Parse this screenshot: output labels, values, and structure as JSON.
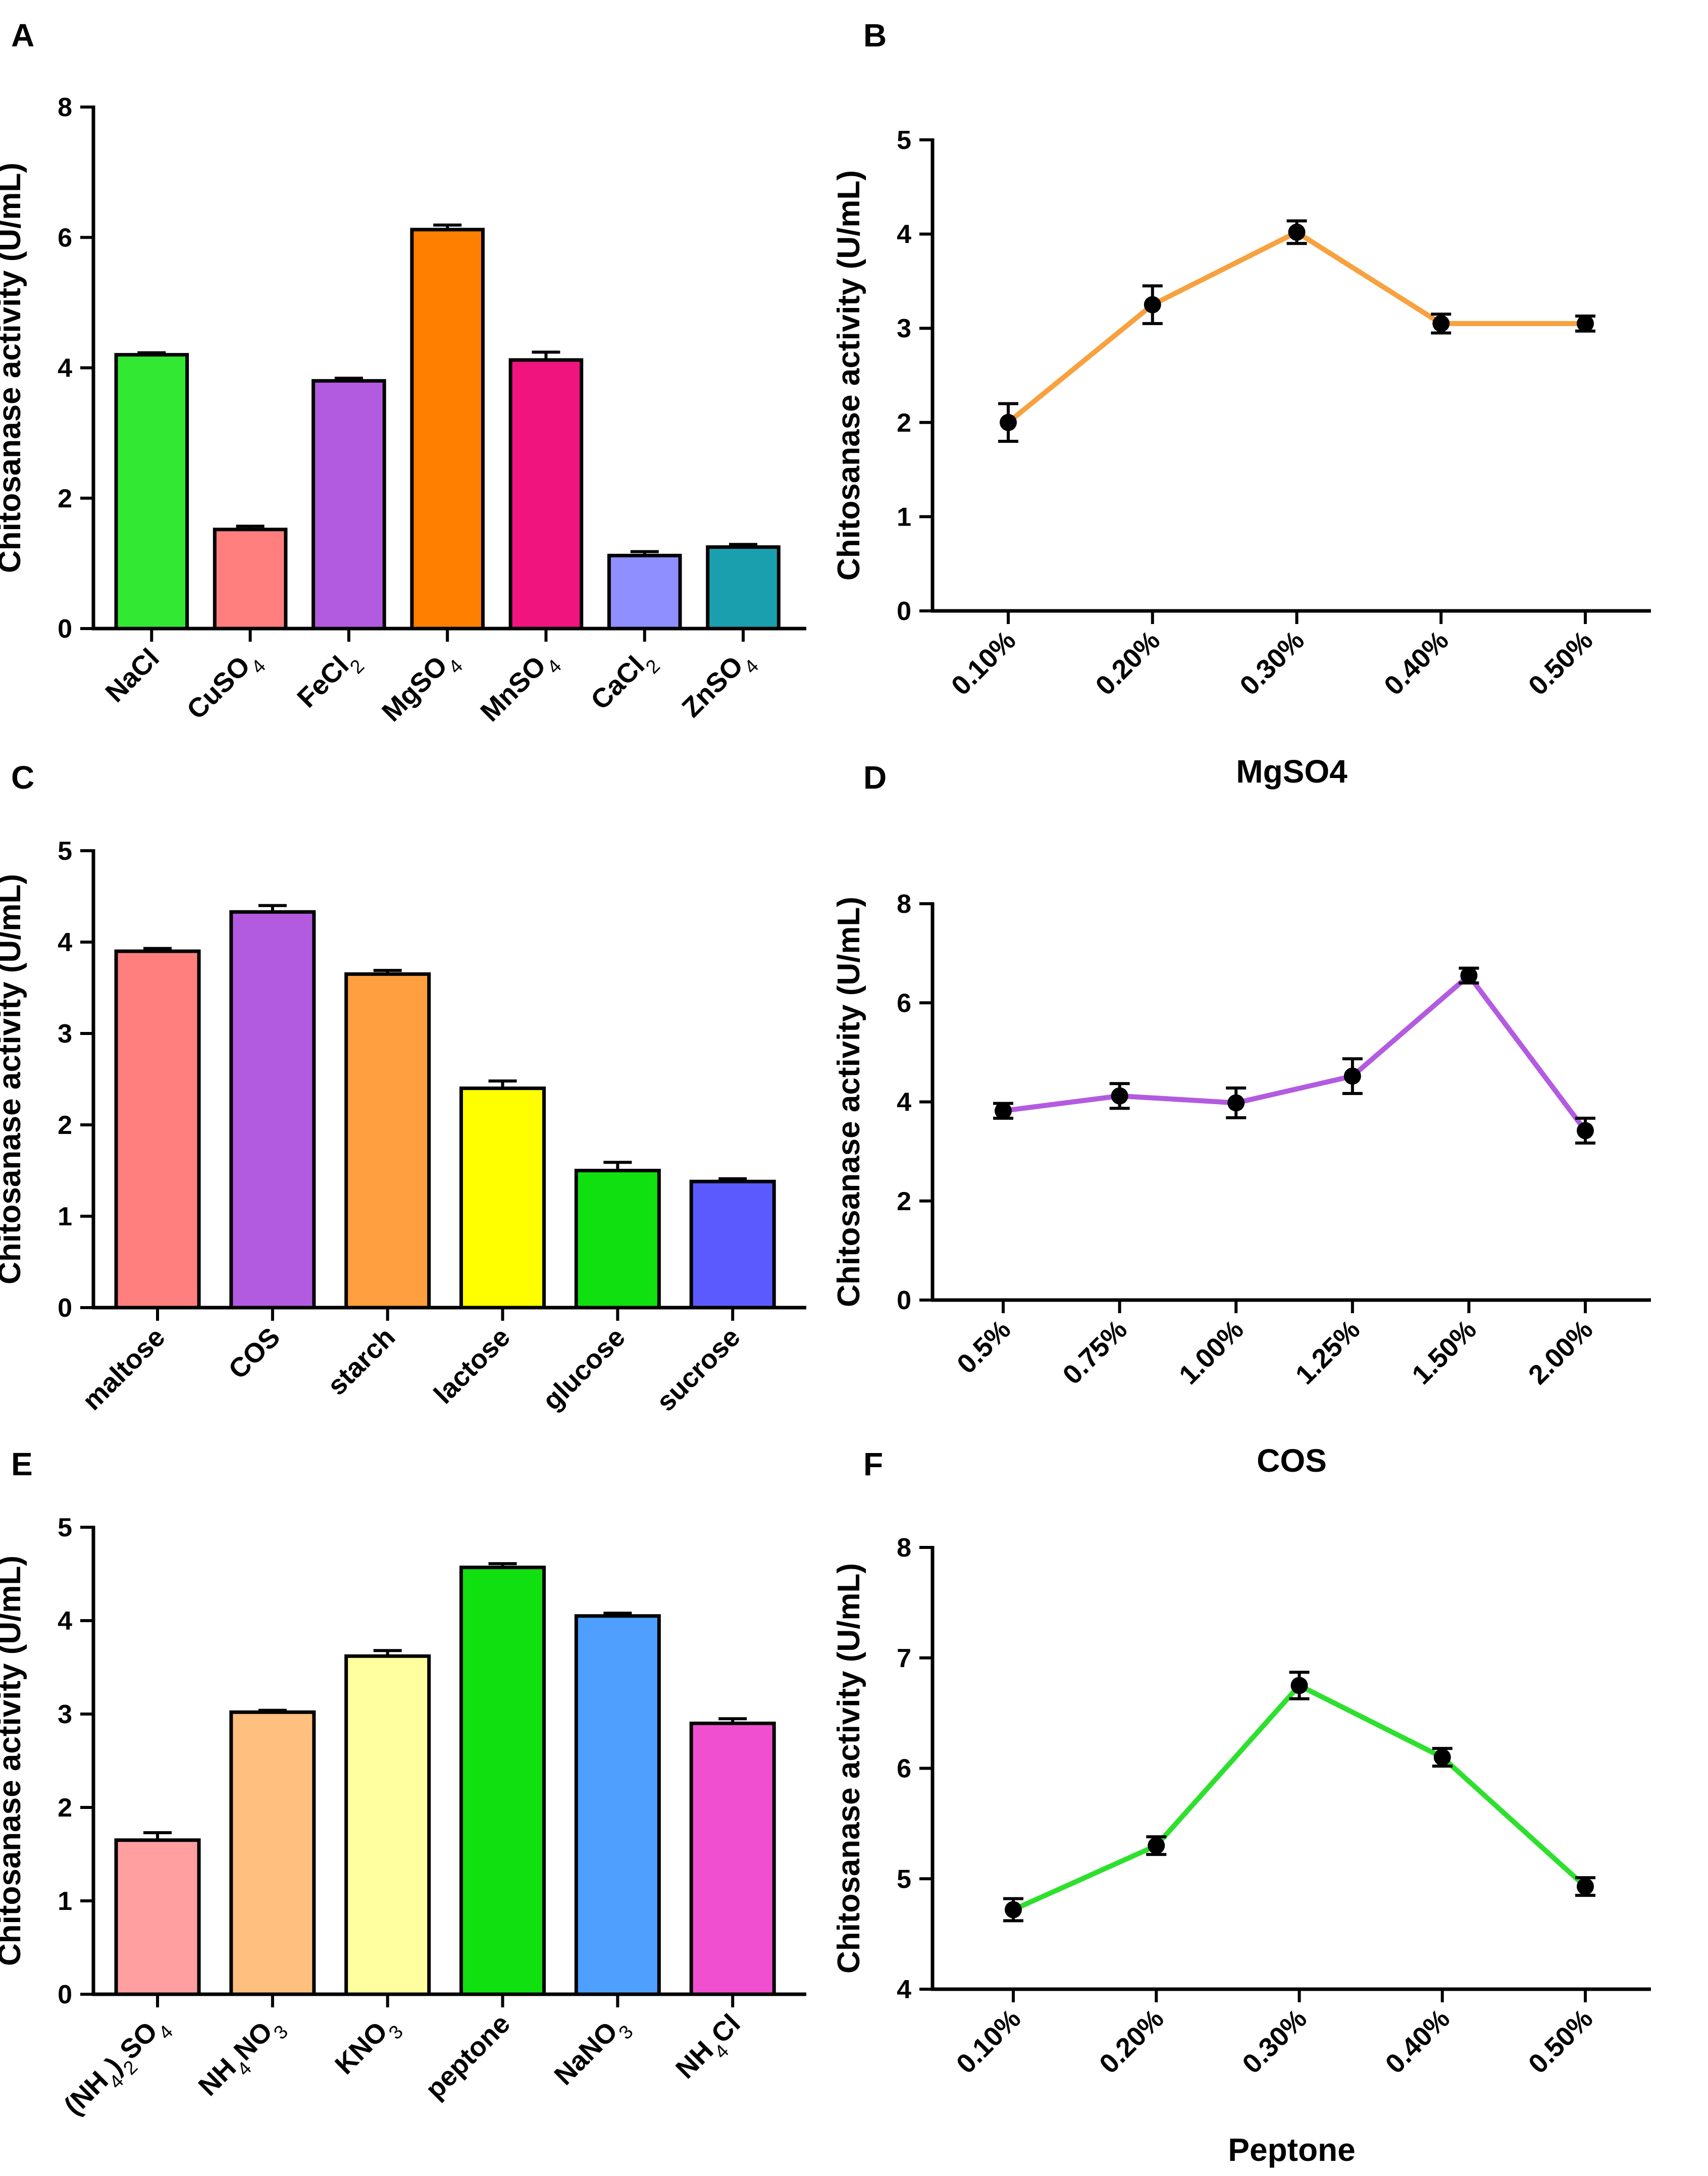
{
  "chart_data": [
    {
      "panel": "A",
      "type": "bar",
      "title": "",
      "xlabel": "",
      "ylabel": "Chitosanase activity (U/mL)",
      "ylim": [
        0,
        8
      ],
      "yticks": [
        0,
        2,
        4,
        6,
        8
      ],
      "categories": [
        "NaCl",
        "CuSO4",
        "FeCl2",
        "MgSO4",
        "MnSO4",
        "CaCl2",
        "ZnSO4"
      ],
      "category_parts": [
        [
          {
            "t": "NaCl"
          }
        ],
        [
          {
            "t": "CuSO"
          },
          {
            "t": "4",
            "sub": true
          }
        ],
        [
          {
            "t": "FeCl"
          },
          {
            "t": "2",
            "sub": true
          }
        ],
        [
          {
            "t": "MgSO"
          },
          {
            "t": "4",
            "sub": true
          }
        ],
        [
          {
            "t": "MnSO"
          },
          {
            "t": "4",
            "sub": true
          }
        ],
        [
          {
            "t": "CaCl"
          },
          {
            "t": "2",
            "sub": true
          }
        ],
        [
          {
            "t": "ZnSO"
          },
          {
            "t": "4",
            "sub": true
          }
        ]
      ],
      "values": [
        4.2,
        1.52,
        3.8,
        6.12,
        4.12,
        1.12,
        1.25
      ],
      "errors": [
        0.03,
        0.05,
        0.04,
        0.07,
        0.12,
        0.06,
        0.04
      ],
      "colors": [
        "#33e833",
        "#ff7f7f",
        "#b35be0",
        "#ff7f00",
        "#f0147f",
        "#8f8fff",
        "#1a9faf"
      ]
    },
    {
      "panel": "B",
      "type": "line",
      "title": "",
      "xlabel": "MgSO4",
      "ylabel": "Chitosanase activity (U/mL)",
      "ylim": [
        0,
        5
      ],
      "yticks": [
        0,
        1,
        2,
        3,
        4,
        5
      ],
      "categories": [
        "0.10%",
        "0.20%",
        "0.30%",
        "0.40%",
        "0.50%"
      ],
      "values": [
        2.0,
        3.25,
        4.02,
        3.05,
        3.05
      ],
      "errors": [
        0.2,
        0.2,
        0.12,
        0.1,
        0.08
      ],
      "color": "#f7a13f"
    },
    {
      "panel": "C",
      "type": "bar",
      "title": "",
      "xlabel": "",
      "ylabel": "Chitosanase activity (U/mL)",
      "ylim": [
        0,
        5
      ],
      "yticks": [
        0,
        1,
        2,
        3,
        4,
        5
      ],
      "categories": [
        "maltose",
        "COS",
        "starch",
        "lactose",
        "glucose",
        "sucrose"
      ],
      "category_parts": [
        [
          {
            "t": "maltose"
          }
        ],
        [
          {
            "t": "COS"
          }
        ],
        [
          {
            "t": "starch"
          }
        ],
        [
          {
            "t": "lactose"
          }
        ],
        [
          {
            "t": "glucose"
          }
        ],
        [
          {
            "t": "sucrose"
          }
        ]
      ],
      "values": [
        3.9,
        4.33,
        3.65,
        2.4,
        1.5,
        1.38
      ],
      "errors": [
        0.03,
        0.07,
        0.04,
        0.08,
        0.09,
        0.03
      ],
      "colors": [
        "#ff7f7f",
        "#b35be0",
        "#ff9f3f",
        "#ffff00",
        "#10e010",
        "#5a5aff"
      ]
    },
    {
      "panel": "D",
      "type": "line",
      "title": "",
      "xlabel": "COS",
      "ylabel": "Chitosanase activity (U/mL)",
      "ylim": [
        0,
        8
      ],
      "yticks": [
        0,
        2,
        4,
        6,
        8
      ],
      "categories": [
        "0.5%",
        "0.75%",
        "1.00%",
        "1.25%",
        "1.50%",
        "2.00%"
      ],
      "values": [
        3.82,
        4.12,
        3.98,
        4.52,
        6.55,
        3.42
      ],
      "errors": [
        0.15,
        0.25,
        0.3,
        0.35,
        0.15,
        0.25
      ],
      "color": "#b35be0"
    },
    {
      "panel": "E",
      "type": "bar",
      "title": "",
      "xlabel": "",
      "ylabel": "Chitosanase activity (U/mL)",
      "ylim": [
        0,
        5
      ],
      "yticks": [
        0,
        1,
        2,
        3,
        4,
        5
      ],
      "categories": [
        "(NH4)2SO4",
        "NH4NO3",
        "KNO3",
        "peptone",
        "NaNO3",
        "NH4Cl"
      ],
      "category_parts": [
        [
          {
            "t": "(NH"
          },
          {
            "t": "4",
            "sub": true
          },
          {
            "t": ")"
          },
          {
            "t": "2",
            "sub": true
          },
          {
            "t": "SO"
          },
          {
            "t": "4",
            "sub": true
          }
        ],
        [
          {
            "t": "NH"
          },
          {
            "t": "4",
            "sub": true
          },
          {
            "t": "NO"
          },
          {
            "t": "3",
            "sub": true
          }
        ],
        [
          {
            "t": "KNO"
          },
          {
            "t": "3",
            "sub": true
          }
        ],
        [
          {
            "t": "peptone"
          }
        ],
        [
          {
            "t": "NaNO"
          },
          {
            "t": "3",
            "sub": true
          }
        ],
        [
          {
            "t": "NH"
          },
          {
            "t": "4",
            "sub": true
          },
          {
            "t": "Cl"
          }
        ]
      ],
      "values": [
        1.65,
        3.02,
        3.62,
        4.57,
        4.05,
        2.9
      ],
      "errors": [
        0.08,
        0.02,
        0.06,
        0.04,
        0.03,
        0.05
      ],
      "colors": [
        "#ff9f9f",
        "#ffbf7f",
        "#ffff9f",
        "#10e010",
        "#4f9fff",
        "#f050d0"
      ]
    },
    {
      "panel": "F",
      "type": "line",
      "title": "",
      "xlabel": "Peptone",
      "ylabel": "Chitosanase activity (U/mL)",
      "ylim": [
        4,
        8
      ],
      "yticks": [
        4,
        5,
        6,
        7,
        8
      ],
      "categories": [
        "0.10%",
        "0.20%",
        "0.30%",
        "0.40%",
        "0.50%"
      ],
      "values": [
        4.72,
        5.3,
        6.75,
        6.1,
        4.93
      ],
      "errors": [
        0.1,
        0.08,
        0.12,
        0.08,
        0.08
      ],
      "color": "#2ee02e"
    }
  ]
}
